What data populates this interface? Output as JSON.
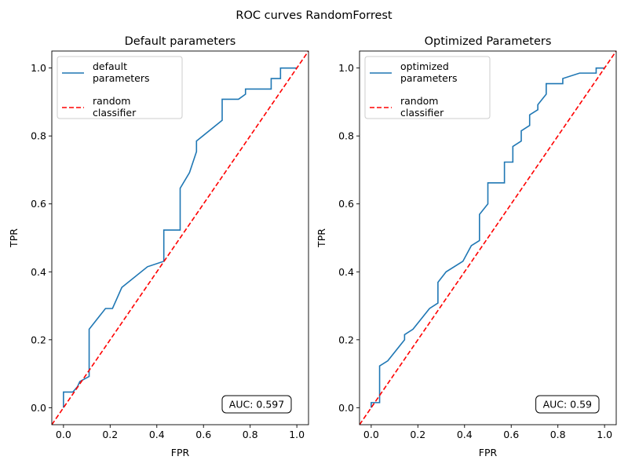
{
  "suptitle": "ROC curves RandomForrest",
  "chart_data": [
    {
      "type": "line",
      "title": "Default parameters",
      "xlabel": "FPR",
      "ylabel": "TPR",
      "xlim": [
        -0.05,
        1.05
      ],
      "ylim": [
        -0.05,
        1.05
      ],
      "xticks": [
        "0.0",
        "0.2",
        "0.4",
        "0.6",
        "0.8",
        "1.0"
      ],
      "yticks": [
        "0.0",
        "0.2",
        "0.4",
        "0.6",
        "0.8",
        "1.0"
      ],
      "grid": false,
      "legend_position": "top-left",
      "annotation": "AUC: 0.597",
      "series": [
        {
          "name": "default\nparameters",
          "color": "#1f77b4",
          "style": "solid",
          "x": [
            0.0,
            0.0,
            0.04,
            0.06,
            0.07,
            0.07,
            0.11,
            0.11,
            0.18,
            0.21,
            0.25,
            0.36,
            0.43,
            0.43,
            0.5,
            0.5,
            0.54,
            0.57,
            0.57,
            0.68,
            0.68,
            0.75,
            0.78,
            0.78,
            0.89,
            0.89,
            0.93,
            0.93,
            1.0
          ],
          "y": [
            0.0,
            0.046,
            0.046,
            0.062,
            0.077,
            0.077,
            0.092,
            0.231,
            0.292,
            0.292,
            0.354,
            0.415,
            0.431,
            0.523,
            0.523,
            0.646,
            0.692,
            0.754,
            0.785,
            0.846,
            0.908,
            0.908,
            0.923,
            0.938,
            0.938,
            0.969,
            0.969,
            1.0,
            1.0
          ]
        },
        {
          "name": "random\nclassifier",
          "color": "#ff0000",
          "style": "dashed",
          "x": [
            -0.05,
            1.05
          ],
          "y": [
            -0.05,
            1.05
          ]
        }
      ]
    },
    {
      "type": "line",
      "title": "Optimized Parameters",
      "xlabel": "FPR",
      "ylabel": "TPR",
      "xlim": [
        -0.05,
        1.05
      ],
      "ylim": [
        -0.05,
        1.05
      ],
      "xticks": [
        "0.0",
        "0.2",
        "0.4",
        "0.6",
        "0.8",
        "1.0"
      ],
      "yticks": [
        "0.0",
        "0.2",
        "0.4",
        "0.6",
        "0.8",
        "1.0"
      ],
      "grid": false,
      "legend_position": "top-left",
      "annotation": "AUC: 0.59",
      "series": [
        {
          "name": "optimized\nparameters",
          "color": "#1f77b4",
          "style": "solid",
          "x": [
            0.0,
            0.0,
            0.036,
            0.036,
            0.071,
            0.143,
            0.143,
            0.179,
            0.25,
            0.286,
            0.286,
            0.321,
            0.393,
            0.429,
            0.464,
            0.464,
            0.5,
            0.5,
            0.571,
            0.571,
            0.607,
            0.607,
            0.643,
            0.643,
            0.679,
            0.679,
            0.714,
            0.714,
            0.75,
            0.75,
            0.821,
            0.821,
            0.893,
            0.964,
            0.964,
            1.0
          ],
          "y": [
            0.0,
            0.015,
            0.015,
            0.123,
            0.138,
            0.2,
            0.215,
            0.231,
            0.292,
            0.308,
            0.369,
            0.4,
            0.431,
            0.477,
            0.492,
            0.569,
            0.6,
            0.662,
            0.662,
            0.723,
            0.723,
            0.769,
            0.785,
            0.815,
            0.831,
            0.862,
            0.877,
            0.892,
            0.923,
            0.954,
            0.954,
            0.969,
            0.985,
            0.985,
            1.0,
            1.0
          ]
        },
        {
          "name": "random\nclassifier",
          "color": "#ff0000",
          "style": "dashed",
          "x": [
            -0.05,
            1.05
          ],
          "y": [
            -0.05,
            1.05
          ]
        }
      ]
    }
  ]
}
